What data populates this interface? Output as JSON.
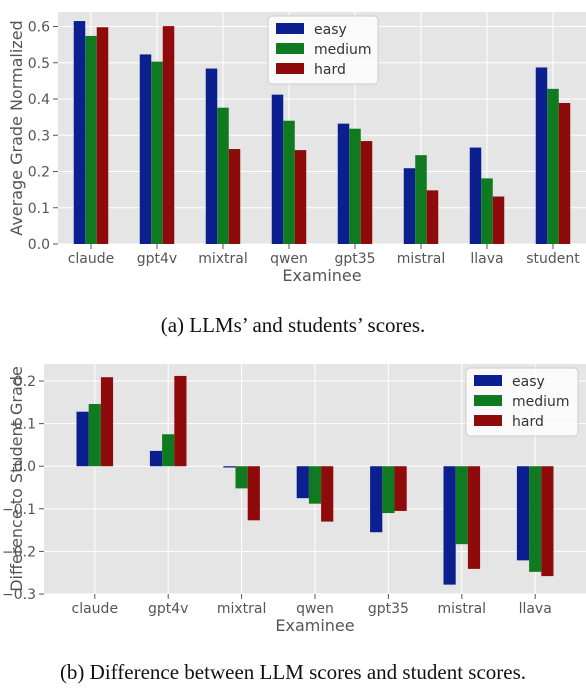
{
  "colors": {
    "easy": "#0b1f8f",
    "medium": "#0f7a1f",
    "hard": "#8f0a0a",
    "panel_bg": "#e5e5e5",
    "grid": "#ffffff",
    "text": "#555555"
  },
  "chart_data": [
    {
      "type": "bar",
      "xlabel": "Examinee",
      "ylabel": "Average Grade Normalized",
      "ylim": [
        0,
        0.64
      ],
      "yticks": [
        0.0,
        0.1,
        0.2,
        0.3,
        0.4,
        0.5,
        0.6
      ],
      "ytick_labels": [
        "0.0",
        "0.1",
        "0.2",
        "0.3",
        "0.4",
        "0.5",
        "0.6"
      ],
      "grid": true,
      "legend_position": "top-center",
      "categories": [
        "claude",
        "gpt4v",
        "mixtral",
        "qwen",
        "gpt35",
        "mistral",
        "llava",
        "student"
      ],
      "series": [
        {
          "name": "easy",
          "values": [
            0.615,
            0.523,
            0.484,
            0.412,
            0.332,
            0.209,
            0.266,
            0.487
          ]
        },
        {
          "name": "medium",
          "values": [
            0.574,
            0.503,
            0.376,
            0.34,
            0.318,
            0.245,
            0.181,
            0.428
          ]
        },
        {
          "name": "hard",
          "values": [
            0.598,
            0.601,
            0.262,
            0.259,
            0.284,
            0.148,
            0.131,
            0.389
          ]
        }
      ]
    },
    {
      "type": "bar",
      "xlabel": "Examinee",
      "ylabel": "Difference to Student Grade",
      "ylim": [
        -0.3,
        0.24
      ],
      "yticks": [
        -0.3,
        -0.2,
        -0.1,
        0.0,
        0.1,
        0.2
      ],
      "ytick_labels": [
        "−0.3",
        "−0.2",
        "−0.1",
        "0.0",
        "0.1",
        "0.2"
      ],
      "grid": true,
      "legend_position": "top-right",
      "categories": [
        "claude",
        "gpt4v",
        "mixtral",
        "qwen",
        "gpt35",
        "mistral",
        "llava"
      ],
      "series": [
        {
          "name": "easy",
          "values": [
            0.128,
            0.036,
            -0.003,
            -0.075,
            -0.155,
            -0.278,
            -0.221
          ]
        },
        {
          "name": "medium",
          "values": [
            0.146,
            0.075,
            -0.052,
            -0.088,
            -0.11,
            -0.183,
            -0.248
          ]
        },
        {
          "name": "hard",
          "values": [
            0.209,
            0.212,
            -0.127,
            -0.13,
            -0.105,
            -0.241,
            -0.258
          ]
        }
      ]
    }
  ],
  "captions": {
    "a": "(a) LLMs’ and students’ scores.",
    "b": "(b) Difference between LLM scores and student scores."
  }
}
